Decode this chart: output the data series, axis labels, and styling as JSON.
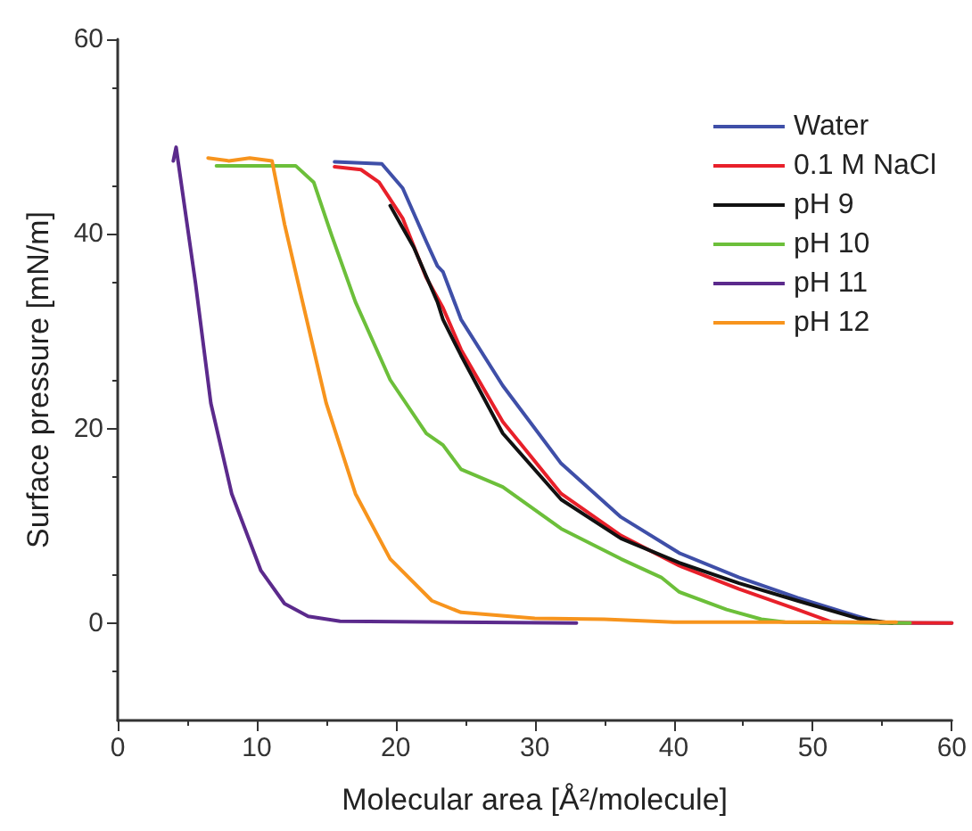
{
  "chart_data": {
    "type": "line",
    "xlabel": "Molecular area [Å²/molecule]",
    "ylabel": "Surface pressure [mN/m]",
    "xlim": [
      0,
      60
    ],
    "xticks": [
      0,
      10,
      20,
      30,
      40,
      50,
      60
    ],
    "ylim": [
      -10,
      60
    ],
    "yticks": [
      0,
      20,
      40,
      60
    ],
    "grid": false,
    "legend": "top right",
    "marker": "none",
    "line_style": "solid",
    "series": [
      {
        "name": "Water",
        "color": "#3f4fa8",
        "x": [
          15.6,
          19.0,
          20.5,
          22.2,
          23.0,
          23.4,
          24.7,
          27.7,
          31.9,
          36.2,
          40.4,
          44.7,
          48.9,
          53.2,
          54.9,
          60
        ],
        "values": [
          47.4,
          47.2,
          44.7,
          39.2,
          36.7,
          36.1,
          31.2,
          24.4,
          16.4,
          10.9,
          7.2,
          4.7,
          2.6,
          0.7,
          0,
          0
        ]
      },
      {
        "name": "0.1 M NaCl",
        "color": "#e8202a",
        "x": [
          15.6,
          17.5,
          18.8,
          20.5,
          22.2,
          23.4,
          24.7,
          27.7,
          31.9,
          36.2,
          40.4,
          44.7,
          48.9,
          51.4,
          60
        ],
        "values": [
          46.9,
          46.6,
          45.3,
          41.6,
          35.5,
          32.4,
          28.1,
          20.7,
          13.3,
          9.0,
          5.9,
          3.5,
          1.4,
          0.1,
          0
        ]
      },
      {
        "name": "pH 9",
        "color": "#111111",
        "x": [
          19.6,
          21.3,
          23.0,
          23.4,
          24.7,
          27.7,
          31.9,
          36.2,
          40.4,
          44.7,
          48.9,
          53.2,
          55.7
        ],
        "values": [
          42.9,
          38.6,
          33.0,
          31.2,
          27.5,
          19.5,
          12.7,
          8.7,
          6.2,
          4.1,
          2.3,
          0.5,
          0
        ]
      },
      {
        "name": "pH 10",
        "color": "#6cbf3a",
        "x": [
          7.1,
          12.8,
          14.1,
          15.4,
          17.1,
          19.6,
          22.2,
          23.4,
          24.7,
          27.7,
          31.9,
          36.2,
          39.1,
          40.4,
          43.8,
          46.3,
          48.0,
          57.0
        ],
        "values": [
          47.0,
          47.0,
          45.3,
          39.8,
          33.0,
          25.0,
          19.5,
          18.3,
          15.8,
          14.0,
          9.7,
          6.6,
          4.7,
          3.2,
          1.4,
          0.4,
          0.1,
          0
        ]
      },
      {
        "name": "pH 11",
        "color": "#5b2a8c",
        "x": [
          4.0,
          4.2,
          5.6,
          6.7,
          8.2,
          10.3,
          12.0,
          13.7,
          16.0,
          33.0
        ],
        "values": [
          47.5,
          48.9,
          34.9,
          22.6,
          13.3,
          5.4,
          2.0,
          0.7,
          0.2,
          0
        ]
      },
      {
        "name": "pH 12",
        "color": "#f7941d",
        "x": [
          6.5,
          8.0,
          9.5,
          11.1,
          12.0,
          13.3,
          15.0,
          17.1,
          19.6,
          22.6,
          24.7,
          30.0,
          35.0,
          40.0,
          56.0
        ],
        "values": [
          47.8,
          47.5,
          47.8,
          47.5,
          41.0,
          33.0,
          22.6,
          13.3,
          6.6,
          2.3,
          1.1,
          0.5,
          0.4,
          0.1,
          0.1
        ]
      }
    ]
  }
}
